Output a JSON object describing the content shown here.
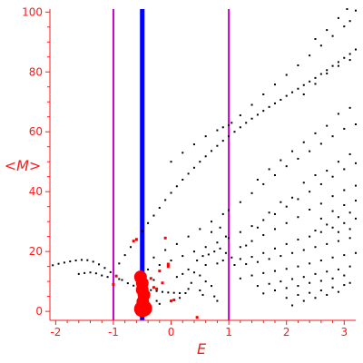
{
  "chart_data": {
    "type": "scatter",
    "title": "",
    "xlabel": "E",
    "ylabel": "<M>",
    "xlim": [
      -2.1,
      3.2
    ],
    "ylim": [
      -3,
      101
    ],
    "x_ticks": [
      -2,
      -1,
      0,
      1,
      2,
      3
    ],
    "y_ticks": [
      0,
      20,
      40,
      60,
      80,
      100
    ],
    "grid": false,
    "colors": {
      "axis": "#ff1a1a",
      "points": "#000000",
      "highlight_points": "#ff0000",
      "center_line": "#0000ff",
      "boundary_lines": "#cc00cc"
    },
    "vertical_lines": [
      {
        "x": -0.5,
        "color": "#0000ff"
      },
      {
        "x": -1,
        "color": "#cc00cc"
      },
      {
        "x": 1,
        "color": "#cc00cc"
      }
    ],
    "series": [
      {
        "marker": "small black dots",
        "points": [
          [
            -2.05,
            15.4
          ],
          [
            -1.95,
            15.9
          ],
          [
            -1.85,
            16.3
          ],
          [
            -1.75,
            16.7
          ],
          [
            -1.65,
            17.0
          ],
          [
            -1.55,
            17.2
          ],
          [
            -1.45,
            17.1
          ],
          [
            -1.35,
            16.6
          ],
          [
            -1.25,
            15.7
          ],
          [
            -1.15,
            14.5
          ],
          [
            -1.05,
            13.1
          ],
          [
            -0.95,
            11.7
          ],
          [
            -0.85,
            10.5
          ],
          [
            -0.75,
            9.4
          ],
          [
            -0.65,
            8.6
          ],
          [
            -0.55,
            8.0
          ],
          [
            -0.45,
            7.5
          ],
          [
            -0.35,
            7.1
          ],
          [
            -0.25,
            6.8
          ],
          [
            -0.15,
            6.5
          ],
          [
            -0.05,
            6.3
          ],
          [
            0.05,
            6.2
          ],
          [
            0.15,
            6.1
          ],
          [
            0.25,
            6.1
          ],
          [
            -1.6,
            12.5
          ],
          [
            -1.5,
            12.8
          ],
          [
            -1.4,
            13.0
          ],
          [
            -1.3,
            12.7
          ],
          [
            -1.2,
            12.0
          ],
          [
            -1.1,
            11.5
          ],
          [
            -0.9,
            10.8
          ],
          [
            -0.9,
            16.0
          ],
          [
            -0.8,
            18.8
          ],
          [
            -0.7,
            21.5
          ],
          [
            -0.6,
            24.2
          ],
          [
            -0.5,
            26.8
          ],
          [
            -0.4,
            29.5
          ],
          [
            -0.3,
            32.0
          ],
          [
            -0.2,
            34.6
          ],
          [
            -0.1,
            37.2
          ],
          [
            0.0,
            39.6
          ],
          [
            0.1,
            41.8
          ],
          [
            0.2,
            44.0
          ],
          [
            0.3,
            46.0
          ],
          [
            0.4,
            48.0
          ],
          [
            0.5,
            50.0
          ],
          [
            0.6,
            51.8
          ],
          [
            0.7,
            53.6
          ],
          [
            0.8,
            55.3
          ],
          [
            0.9,
            57.0
          ],
          [
            1.0,
            58.5
          ],
          [
            1.1,
            60.0
          ],
          [
            1.2,
            61.5
          ],
          [
            1.3,
            63.0
          ],
          [
            1.4,
            64.4
          ],
          [
            1.5,
            65.7
          ],
          [
            1.6,
            67.0
          ],
          [
            1.7,
            68.3
          ],
          [
            1.8,
            69.5
          ],
          [
            1.9,
            70.7
          ],
          [
            2.0,
            72.0
          ],
          [
            2.1,
            73.2
          ],
          [
            2.2,
            74.4
          ],
          [
            2.3,
            75.6
          ],
          [
            2.4,
            76.8
          ],
          [
            2.5,
            78.0
          ],
          [
            2.6,
            79.3
          ],
          [
            2.7,
            80.6
          ],
          [
            2.8,
            82.0
          ],
          [
            2.9,
            83.3
          ],
          [
            3.0,
            84.7
          ],
          [
            3.1,
            86.0
          ],
          [
            3.2,
            87.5
          ],
          [
            0.0,
            50.0
          ],
          [
            0.2,
            53.0
          ],
          [
            0.4,
            55.8
          ],
          [
            0.6,
            58.5
          ],
          [
            0.8,
            60.5
          ],
          [
            0.9,
            61.5
          ],
          [
            1.0,
            62.2
          ],
          [
            1.05,
            63.0
          ],
          [
            1.2,
            65.5
          ],
          [
            1.4,
            69.0
          ],
          [
            1.6,
            72.5
          ],
          [
            1.8,
            75.8
          ],
          [
            2.0,
            79.0
          ],
          [
            2.2,
            82.2
          ],
          [
            2.4,
            85.5
          ],
          [
            2.6,
            88.8
          ],
          [
            2.8,
            92.0
          ],
          [
            3.0,
            95.2
          ],
          [
            3.1,
            97.0
          ],
          [
            3.2,
            100.5
          ],
          [
            2.3,
            72.5
          ],
          [
            2.5,
            76.0
          ],
          [
            2.7,
            79.5
          ],
          [
            2.9,
            82.0
          ],
          [
            3.1,
            84.0
          ],
          [
            2.5,
            91.0
          ],
          [
            2.7,
            94.0
          ],
          [
            2.9,
            98.0
          ],
          [
            3.05,
            101.0
          ],
          [
            -0.3,
            18.0
          ],
          [
            -0.1,
            20.5
          ],
          [
            0.1,
            22.5
          ],
          [
            0.3,
            25.0
          ],
          [
            0.5,
            27.5
          ],
          [
            0.7,
            30.0
          ],
          [
            0.9,
            32.5
          ],
          [
            1.0,
            33.8
          ],
          [
            1.2,
            36.5
          ],
          [
            1.4,
            39.5
          ],
          [
            1.6,
            42.5
          ],
          [
            1.8,
            45.5
          ],
          [
            2.0,
            48.5
          ],
          [
            2.2,
            51.0
          ],
          [
            2.4,
            53.5
          ],
          [
            2.6,
            56.0
          ],
          [
            2.8,
            58.5
          ],
          [
            3.0,
            61.0
          ],
          [
            3.2,
            62.5
          ],
          [
            -0.4,
            14.0
          ],
          [
            -0.2,
            15.5
          ],
          [
            0.0,
            17.0
          ],
          [
            0.2,
            18.5
          ],
          [
            0.4,
            20.0
          ],
          [
            0.6,
            21.5
          ],
          [
            0.8,
            23.0
          ],
          [
            1.0,
            24.5
          ],
          [
            1.2,
            26.5
          ],
          [
            1.4,
            28.5
          ],
          [
            1.6,
            30.5
          ],
          [
            1.8,
            32.5
          ],
          [
            2.0,
            35.0
          ],
          [
            2.2,
            37.5
          ],
          [
            2.4,
            40.0
          ],
          [
            2.6,
            42.5
          ],
          [
            2.8,
            45.0
          ],
          [
            3.0,
            47.5
          ],
          [
            3.2,
            49.5
          ],
          [
            1.2,
            21.5
          ],
          [
            1.4,
            23.5
          ],
          [
            1.6,
            25.5
          ],
          [
            1.8,
            27.5
          ],
          [
            2.0,
            29.5
          ],
          [
            2.2,
            31.5
          ],
          [
            2.4,
            34.0
          ],
          [
            2.6,
            36.0
          ],
          [
            2.8,
            38.5
          ],
          [
            3.0,
            40.5
          ],
          [
            3.2,
            42.0
          ],
          [
            1.05,
            18.0
          ],
          [
            1.2,
            17.5
          ],
          [
            1.4,
            18.2
          ],
          [
            1.6,
            19.5
          ],
          [
            1.8,
            21.0
          ],
          [
            2.0,
            22.5
          ],
          [
            2.2,
            24.0
          ],
          [
            2.4,
            25.0
          ],
          [
            2.6,
            26.5
          ],
          [
            2.8,
            28.0
          ],
          [
            3.0,
            29.5
          ],
          [
            3.2,
            31.0
          ],
          [
            1.1,
            15.5
          ],
          [
            1.3,
            15.8
          ],
          [
            1.5,
            16.5
          ],
          [
            1.7,
            17.5
          ],
          [
            1.9,
            18.5
          ],
          [
            2.1,
            19.5
          ],
          [
            2.3,
            20.5
          ],
          [
            2.5,
            21.5
          ],
          [
            2.7,
            22.5
          ],
          [
            2.9,
            23.5
          ],
          [
            3.1,
            24.5
          ],
          [
            1.2,
            11.0
          ],
          [
            1.4,
            12.0
          ],
          [
            1.6,
            12.8
          ],
          [
            1.8,
            13.5
          ],
          [
            2.0,
            14.2
          ],
          [
            2.2,
            15.0
          ],
          [
            2.4,
            16.0
          ],
          [
            2.6,
            17.0
          ],
          [
            2.8,
            18.0
          ],
          [
            3.0,
            18.8
          ],
          [
            3.2,
            19.5
          ],
          [
            1.5,
            8.5
          ],
          [
            1.7,
            9.2
          ],
          [
            1.9,
            10.0
          ],
          [
            2.1,
            10.8
          ],
          [
            2.3,
            11.5
          ],
          [
            2.5,
            12.5
          ],
          [
            2.7,
            13.3
          ],
          [
            2.9,
            14.0
          ],
          [
            3.1,
            15.0
          ],
          [
            1.6,
            6.0
          ],
          [
            1.8,
            7.0
          ],
          [
            2.0,
            7.8
          ],
          [
            2.2,
            8.5
          ],
          [
            2.4,
            9.5
          ],
          [
            2.6,
            10.2
          ],
          [
            2.8,
            11.0
          ],
          [
            3.0,
            12.0
          ],
          [
            2.0,
            4.5
          ],
          [
            2.2,
            5.5
          ],
          [
            2.4,
            6.2
          ],
          [
            2.6,
            7.0
          ],
          [
            2.8,
            8.0
          ],
          [
            3.0,
            8.8
          ],
          [
            3.1,
            9.5
          ],
          [
            2.1,
            2.0
          ],
          [
            2.3,
            3.5
          ],
          [
            2.5,
            4.5
          ],
          [
            2.7,
            5.5
          ],
          [
            2.9,
            6.5
          ],
          [
            0.1,
            11.5
          ],
          [
            0.2,
            12.5
          ],
          [
            0.3,
            14.0
          ],
          [
            0.4,
            13.0
          ],
          [
            0.5,
            12.0
          ],
          [
            0.6,
            10.0
          ],
          [
            0.7,
            8.5
          ],
          [
            0.75,
            5.0
          ],
          [
            0.8,
            3.5
          ],
          [
            0.5,
            7.0
          ],
          [
            0.35,
            9.5
          ],
          [
            0.45,
            17.0
          ],
          [
            0.55,
            18.5
          ],
          [
            0.65,
            19.0
          ],
          [
            0.75,
            20.0
          ],
          [
            0.85,
            21.0
          ],
          [
            0.95,
            19.5
          ],
          [
            0.6,
            15.5
          ],
          [
            0.8,
            16.0
          ],
          [
            0.9,
            17.0
          ],
          [
            0.95,
            25.0
          ],
          [
            0.7,
            26.5
          ],
          [
            0.85,
            28.0
          ],
          [
            1.3,
            22.0
          ],
          [
            1.5,
            28.0
          ],
          [
            1.7,
            33.0
          ],
          [
            1.9,
            36.5
          ],
          [
            2.1,
            38.0
          ],
          [
            2.3,
            43.0
          ],
          [
            2.5,
            45.5
          ],
          [
            2.7,
            47.0
          ],
          [
            2.9,
            50.0
          ],
          [
            3.1,
            52.5
          ],
          [
            1.5,
            44.0
          ],
          [
            1.7,
            47.5
          ],
          [
            1.9,
            50.5
          ],
          [
            2.1,
            53.5
          ],
          [
            2.3,
            56.5
          ],
          [
            2.5,
            59.5
          ],
          [
            2.7,
            62.0
          ],
          [
            2.9,
            66.0
          ],
          [
            3.1,
            68.0
          ],
          [
            2.6,
            31.0
          ],
          [
            2.8,
            33.5
          ],
          [
            3.0,
            35.5
          ],
          [
            3.2,
            37.0
          ],
          [
            2.5,
            27.0
          ],
          [
            2.7,
            29.0
          ],
          [
            2.9,
            31.5
          ],
          [
            3.1,
            33.0
          ],
          [
            2.9,
            26.5
          ],
          [
            3.1,
            27.5
          ],
          [
            -0.2,
            2.5
          ],
          [
            0.15,
            4.5
          ],
          [
            0.3,
            7.5
          ],
          [
            0.55,
            5.5
          ],
          [
            -0.3,
            10.5
          ],
          [
            -0.25,
            3.5
          ]
        ]
      },
      {
        "marker": "red dots",
        "points": [
          [
            -1.0,
            9.0
          ],
          [
            -0.95,
            11.8
          ],
          [
            -0.6,
            10.5
          ],
          [
            -0.35,
            11.0
          ],
          [
            -0.3,
            8.0
          ],
          [
            -0.25,
            7.5
          ],
          [
            -0.15,
            9.5
          ],
          [
            -0.2,
            13.5
          ],
          [
            -0.05,
            15.0
          ],
          [
            -0.05,
            15.8
          ],
          [
            -0.6,
            24.0
          ],
          [
            0.0,
            3.5
          ],
          [
            0.05,
            3.8
          ],
          [
            0.45,
            -2.0
          ],
          [
            -0.1,
            24.5
          ],
          [
            -0.65,
            23.5
          ]
        ]
      },
      {
        "marker": "large red circles",
        "points": [
          [
            -0.5,
            0.8
          ],
          [
            -0.47,
            1.0
          ],
          [
            -0.49,
            3.2
          ],
          [
            -0.47,
            5.5
          ],
          [
            -0.5,
            7.2
          ],
          [
            -0.5,
            9.5
          ],
          [
            -0.53,
            11.5
          ]
        ]
      }
    ]
  }
}
